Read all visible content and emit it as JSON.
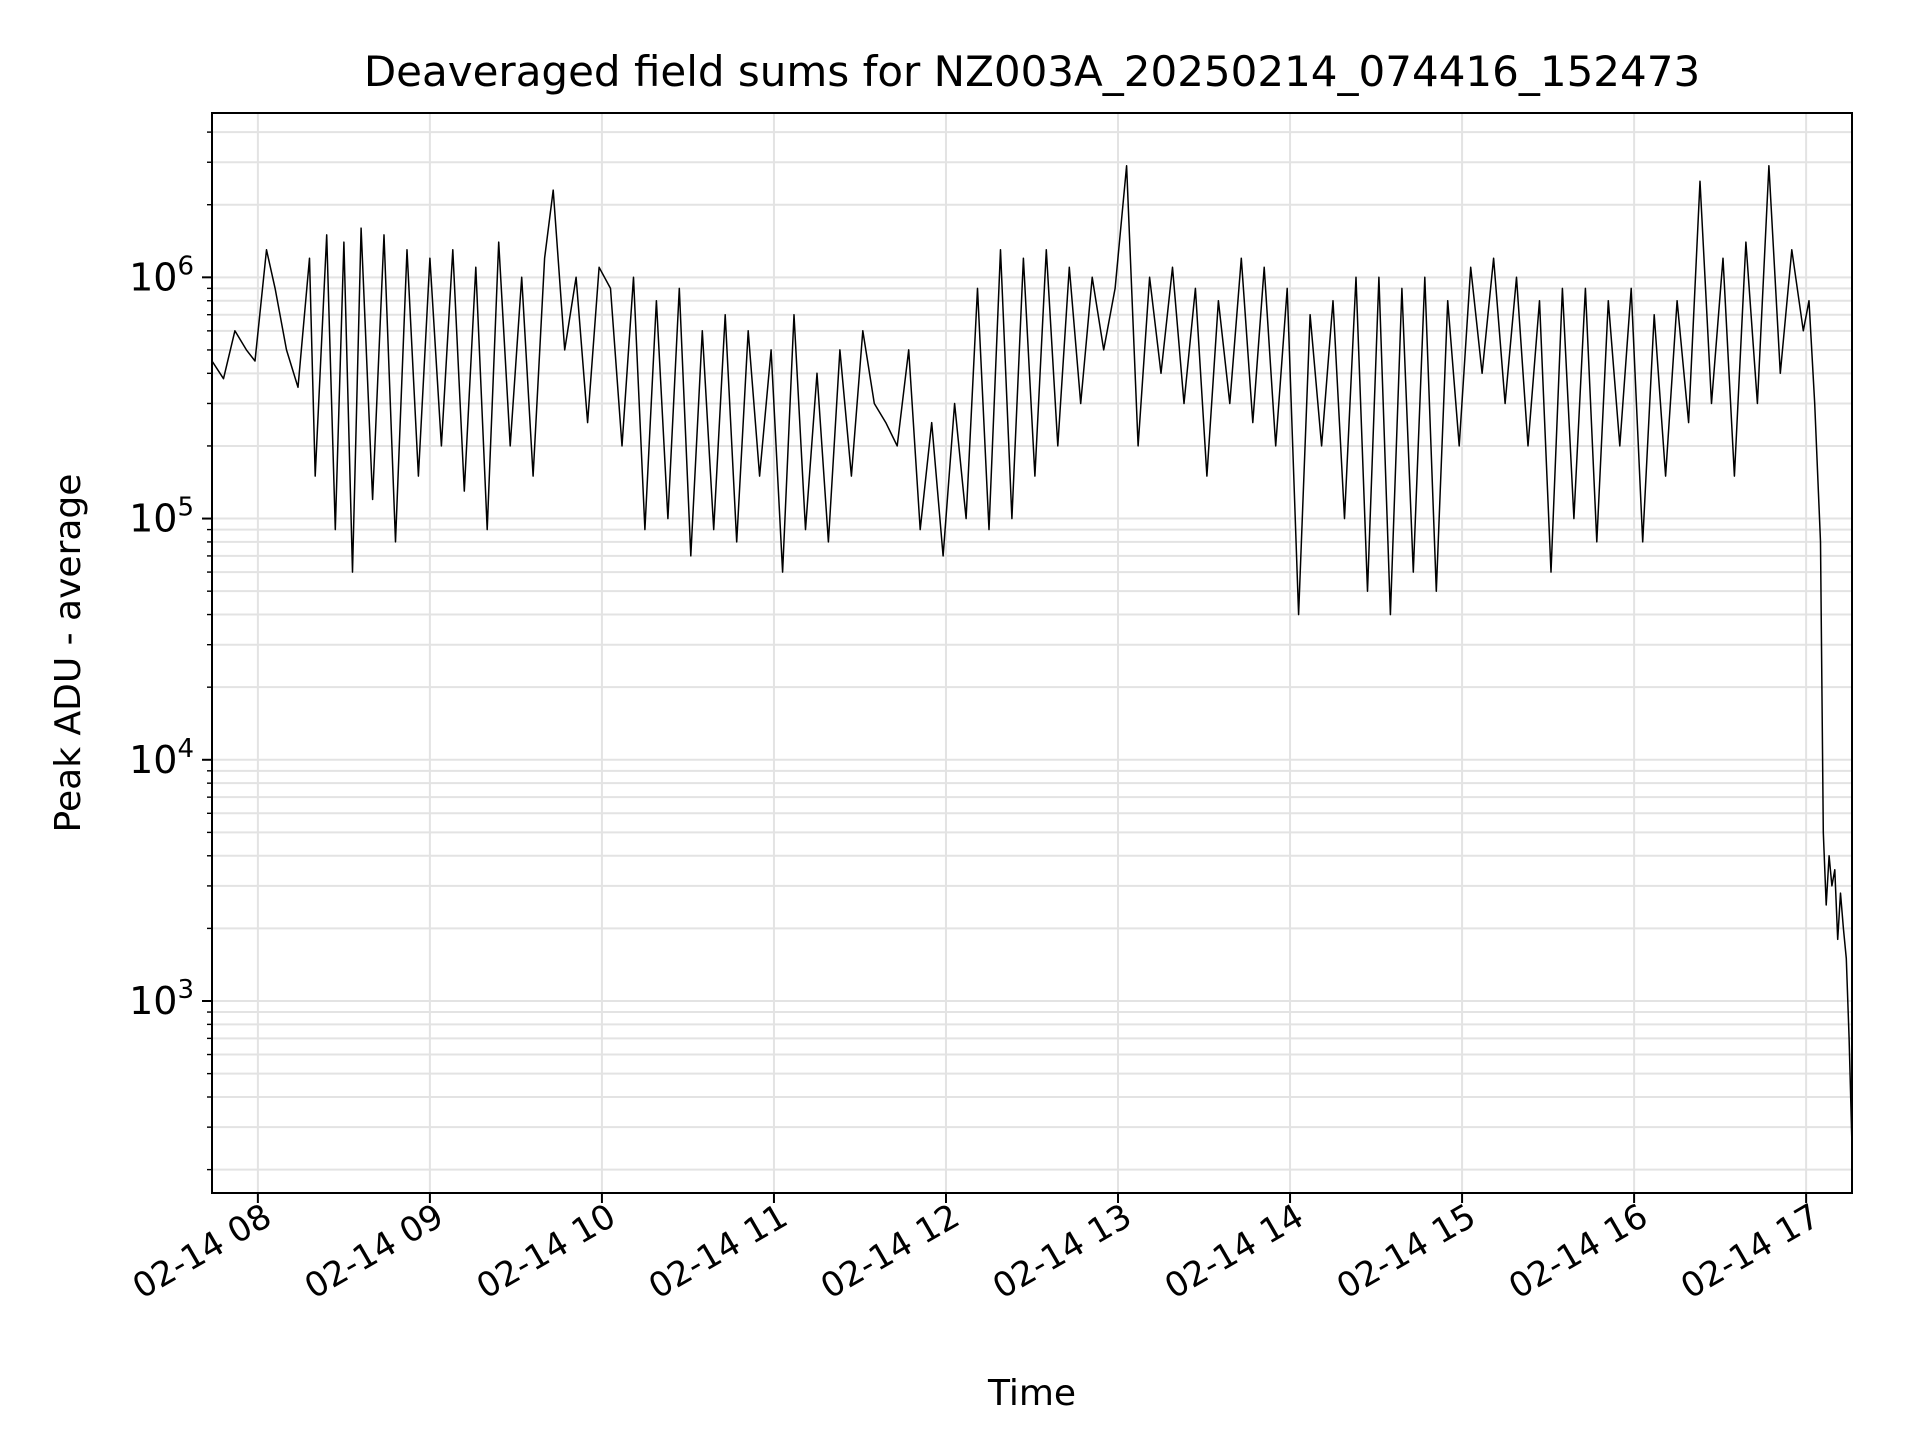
{
  "chart_data": {
    "type": "line",
    "title": "Deaveraged field sums for NZ003A_20250214_074416_152473",
    "xlabel": "Time",
    "ylabel": "Peak ADU - average",
    "yscale": "log",
    "ylim": [
      160,
      4800000
    ],
    "xlim": [
      "2025-02-14T07:44:00",
      "2025-02-14T17:16:00"
    ],
    "grid": true,
    "line_color": "#000000",
    "x_ticks": [
      {
        "t": "2025-02-14T08:00:00",
        "label": "02-14 08"
      },
      {
        "t": "2025-02-14T09:00:00",
        "label": "02-14 09"
      },
      {
        "t": "2025-02-14T10:00:00",
        "label": "02-14 10"
      },
      {
        "t": "2025-02-14T11:00:00",
        "label": "02-14 11"
      },
      {
        "t": "2025-02-14T12:00:00",
        "label": "02-14 12"
      },
      {
        "t": "2025-02-14T13:00:00",
        "label": "02-14 13"
      },
      {
        "t": "2025-02-14T14:00:00",
        "label": "02-14 14"
      },
      {
        "t": "2025-02-14T15:00:00",
        "label": "02-14 15"
      },
      {
        "t": "2025-02-14T16:00:00",
        "label": "02-14 16"
      },
      {
        "t": "2025-02-14T17:00:00",
        "label": "02-14 17"
      }
    ],
    "y_ticks": [
      {
        "value": 1000,
        "base": "10",
        "exp": "3"
      },
      {
        "value": 10000,
        "base": "10",
        "exp": "4"
      },
      {
        "value": 100000,
        "base": "10",
        "exp": "5"
      },
      {
        "value": 1000000,
        "base": "10",
        "exp": "6"
      }
    ],
    "series": [
      {
        "x": [
          "2025-02-14T07:44:00",
          "2025-02-14T07:48:00",
          "2025-02-14T07:52:00",
          "2025-02-14T07:56:00",
          "2025-02-14T07:59:00",
          "2025-02-14T08:03:00",
          "2025-02-14T08:06:00",
          "2025-02-14T08:10:00",
          "2025-02-14T08:14:00",
          "2025-02-14T08:18:00",
          "2025-02-14T08:20:00",
          "2025-02-14T08:24:00",
          "2025-02-14T08:27:00",
          "2025-02-14T08:30:00",
          "2025-02-14T08:33:00",
          "2025-02-14T08:36:00",
          "2025-02-14T08:40:00",
          "2025-02-14T08:44:00",
          "2025-02-14T08:48:00",
          "2025-02-14T08:52:00",
          "2025-02-14T08:56:00",
          "2025-02-14T09:00:00",
          "2025-02-14T09:04:00",
          "2025-02-14T09:08:00",
          "2025-02-14T09:12:00",
          "2025-02-14T09:16:00",
          "2025-02-14T09:20:00",
          "2025-02-14T09:24:00",
          "2025-02-14T09:28:00",
          "2025-02-14T09:32:00",
          "2025-02-14T09:36:00",
          "2025-02-14T09:40:00",
          "2025-02-14T09:43:00",
          "2025-02-14T09:47:00",
          "2025-02-14T09:51:00",
          "2025-02-14T09:55:00",
          "2025-02-14T09:59:00",
          "2025-02-14T10:03:00",
          "2025-02-14T10:07:00",
          "2025-02-14T10:11:00",
          "2025-02-14T10:15:00",
          "2025-02-14T10:19:00",
          "2025-02-14T10:23:00",
          "2025-02-14T10:27:00",
          "2025-02-14T10:31:00",
          "2025-02-14T10:35:00",
          "2025-02-14T10:39:00",
          "2025-02-14T10:43:00",
          "2025-02-14T10:47:00",
          "2025-02-14T10:51:00",
          "2025-02-14T10:55:00",
          "2025-02-14T10:59:00",
          "2025-02-14T11:03:00",
          "2025-02-14T11:07:00",
          "2025-02-14T11:11:00",
          "2025-02-14T11:15:00",
          "2025-02-14T11:19:00",
          "2025-02-14T11:23:00",
          "2025-02-14T11:27:00",
          "2025-02-14T11:31:00",
          "2025-02-14T11:35:00",
          "2025-02-14T11:39:00",
          "2025-02-14T11:43:00",
          "2025-02-14T11:47:00",
          "2025-02-14T11:51:00",
          "2025-02-14T11:55:00",
          "2025-02-14T11:59:00",
          "2025-02-14T12:03:00",
          "2025-02-14T12:07:00",
          "2025-02-14T12:11:00",
          "2025-02-14T12:15:00",
          "2025-02-14T12:19:00",
          "2025-02-14T12:23:00",
          "2025-02-14T12:27:00",
          "2025-02-14T12:31:00",
          "2025-02-14T12:35:00",
          "2025-02-14T12:39:00",
          "2025-02-14T12:43:00",
          "2025-02-14T12:47:00",
          "2025-02-14T12:51:00",
          "2025-02-14T12:55:00",
          "2025-02-14T12:59:00",
          "2025-02-14T13:03:00",
          "2025-02-14T13:07:00",
          "2025-02-14T13:11:00",
          "2025-02-14T13:15:00",
          "2025-02-14T13:19:00",
          "2025-02-14T13:23:00",
          "2025-02-14T13:27:00",
          "2025-02-14T13:31:00",
          "2025-02-14T13:35:00",
          "2025-02-14T13:39:00",
          "2025-02-14T13:43:00",
          "2025-02-14T13:47:00",
          "2025-02-14T13:51:00",
          "2025-02-14T13:55:00",
          "2025-02-14T13:59:00",
          "2025-02-14T14:03:00",
          "2025-02-14T14:07:00",
          "2025-02-14T14:11:00",
          "2025-02-14T14:15:00",
          "2025-02-14T14:19:00",
          "2025-02-14T14:23:00",
          "2025-02-14T14:27:00",
          "2025-02-14T14:31:00",
          "2025-02-14T14:35:00",
          "2025-02-14T14:39:00",
          "2025-02-14T14:43:00",
          "2025-02-14T14:47:00",
          "2025-02-14T14:51:00",
          "2025-02-14T14:55:00",
          "2025-02-14T14:59:00",
          "2025-02-14T15:03:00",
          "2025-02-14T15:07:00",
          "2025-02-14T15:11:00",
          "2025-02-14T15:15:00",
          "2025-02-14T15:19:00",
          "2025-02-14T15:23:00",
          "2025-02-14T15:27:00",
          "2025-02-14T15:31:00",
          "2025-02-14T15:35:00",
          "2025-02-14T15:39:00",
          "2025-02-14T15:43:00",
          "2025-02-14T15:47:00",
          "2025-02-14T15:51:00",
          "2025-02-14T15:55:00",
          "2025-02-14T15:59:00",
          "2025-02-14T16:03:00",
          "2025-02-14T16:07:00",
          "2025-02-14T16:11:00",
          "2025-02-14T16:15:00",
          "2025-02-14T16:19:00",
          "2025-02-14T16:23:00",
          "2025-02-14T16:27:00",
          "2025-02-14T16:31:00",
          "2025-02-14T16:35:00",
          "2025-02-14T16:39:00",
          "2025-02-14T16:43:00",
          "2025-02-14T16:47:00",
          "2025-02-14T16:51:00",
          "2025-02-14T16:55:00",
          "2025-02-14T16:59:00",
          "2025-02-14T17:01:00",
          "2025-02-14T17:03:00",
          "2025-02-14T17:05:00",
          "2025-02-14T17:06:00",
          "2025-02-14T17:07:00",
          "2025-02-14T17:08:00",
          "2025-02-14T17:09:00",
          "2025-02-14T17:10:00",
          "2025-02-14T17:11:00",
          "2025-02-14T17:12:00",
          "2025-02-14T17:13:00",
          "2025-02-14T17:14:00",
          "2025-02-14T17:15:00",
          "2025-02-14T17:16:00"
        ],
        "y": [
          450000,
          380000,
          600000,
          500000,
          450000,
          1300000,
          900000,
          500000,
          350000,
          1200000,
          150000,
          1500000,
          90000,
          1400000,
          60000,
          1600000,
          120000,
          1500000,
          80000,
          1300000,
          150000,
          1200000,
          200000,
          1300000,
          130000,
          1100000,
          90000,
          1400000,
          200000,
          1000000,
          150000,
          1200000,
          2300000,
          500000,
          1000000,
          250000,
          1100000,
          900000,
          200000,
          1000000,
          90000,
          800000,
          100000,
          900000,
          70000,
          600000,
          90000,
          700000,
          80000,
          600000,
          150000,
          500000,
          60000,
          700000,
          90000,
          400000,
          80000,
          500000,
          150000,
          600000,
          300000,
          250000,
          200000,
          500000,
          90000,
          250000,
          70000,
          300000,
          100000,
          900000,
          90000,
          1300000,
          100000,
          1200000,
          150000,
          1300000,
          200000,
          1100000,
          300000,
          1000000,
          500000,
          900000,
          2900000,
          200000,
          1000000,
          400000,
          1100000,
          300000,
          900000,
          150000,
          800000,
          300000,
          1200000,
          250000,
          1100000,
          200000,
          900000,
          40000,
          700000,
          200000,
          800000,
          100000,
          1000000,
          50000,
          1000000,
          40000,
          900000,
          60000,
          1000000,
          50000,
          800000,
          200000,
          1100000,
          400000,
          1200000,
          300000,
          1000000,
          200000,
          800000,
          60000,
          900000,
          100000,
          900000,
          80000,
          800000,
          200000,
          900000,
          80000,
          700000,
          150000,
          800000,
          250000,
          2500000,
          300000,
          1200000,
          150000,
          1400000,
          300000,
          2900000,
          400000,
          1300000,
          600000,
          800000,
          300000,
          80000,
          5000,
          2500,
          4000,
          3000,
          3500,
          1800,
          2800,
          2000,
          1500,
          700,
          250
        ]
      }
    ]
  }
}
